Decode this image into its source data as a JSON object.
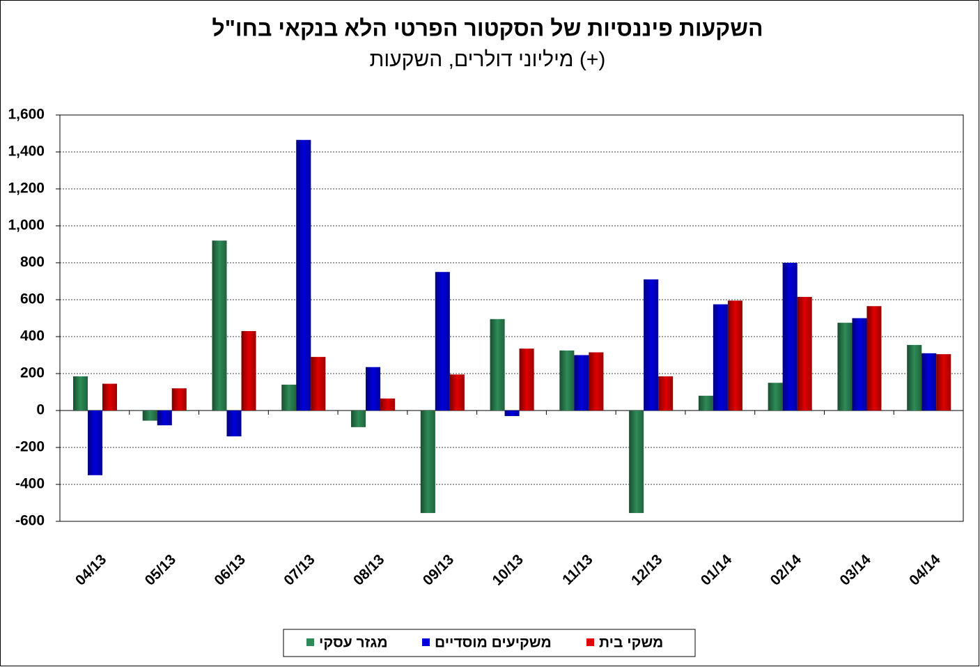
{
  "chart_data": {
    "type": "bar",
    "title": "השקעות פיננסיות של הסקטור הפרטי הלא בנקאי בחו\"ל",
    "subtitle": "מיליוני דולרים, השקעות (+)",
    "categories": [
      "04/13",
      "05/13",
      "06/13",
      "07/13",
      "08/13",
      "09/13",
      "10/13",
      "11/13",
      "12/13",
      "01/14",
      "02/14",
      "03/14",
      "04/14"
    ],
    "series": [
      {
        "name": "מגזר עסקי",
        "color": "#2e8b57",
        "values": [
          185,
          -55,
          920,
          140,
          -90,
          -555,
          495,
          325,
          -555,
          80,
          150,
          475,
          355
        ]
      },
      {
        "name": "משקיעים מוסדיים",
        "color": "#0000dd",
        "values": [
          -350,
          -80,
          -140,
          1465,
          235,
          750,
          -30,
          300,
          710,
          575,
          800,
          500,
          310
        ]
      },
      {
        "name": "משקי בית",
        "color": "#e00000",
        "values": [
          145,
          120,
          430,
          290,
          65,
          195,
          335,
          315,
          185,
          595,
          615,
          565,
          305
        ]
      }
    ],
    "ylim": [
      -600,
      1600
    ],
    "yticks": [
      -600,
      -400,
      -200,
      0,
      200,
      400,
      600,
      800,
      {
        "value": 1000,
        "label": "1,000"
      },
      {
        "value": 1200,
        "label": "1,200"
      },
      {
        "value": 1400,
        "label": "1,400"
      },
      {
        "value": 1600,
        "label": "1,600"
      }
    ],
    "grid": true
  }
}
